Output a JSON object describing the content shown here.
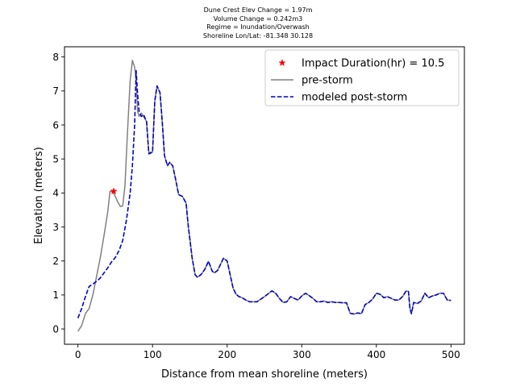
{
  "header_lines": [
    "Dune Crest Elev Change = 1.97m",
    "Volume Change = 0.242m3",
    "Regime = Inundation/Overwash",
    "Shoreline Lon/Lat: -81.348 30.128"
  ],
  "chart_data": {
    "type": "line",
    "xlabel": "Distance from mean shoreline (meters)",
    "ylabel": "Elevation (meters)",
    "xlim": [
      -18,
      518
    ],
    "ylim": [
      -0.45,
      8.3
    ],
    "xticks": [
      0,
      100,
      200,
      300,
      400,
      500
    ],
    "yticks": [
      0,
      1,
      2,
      3,
      4,
      5,
      6,
      7,
      8
    ],
    "grid": false,
    "legend_position": "top-right",
    "series": [
      {
        "name": "pre-storm",
        "color": "#808080",
        "style": "solid",
        "x": [
          0,
          5,
          10,
          15,
          20,
          25,
          30,
          35,
          40,
          43,
          47,
          50,
          53,
          57,
          60,
          63,
          66,
          70,
          73,
          76,
          78,
          80,
          82,
          85,
          88,
          92,
          95,
          100,
          103,
          106,
          110,
          113,
          116,
          120,
          123,
          127,
          130,
          135,
          140,
          145,
          148,
          150,
          153,
          157,
          160,
          165,
          170,
          175,
          180,
          183,
          187,
          190,
          195,
          200,
          205,
          208,
          212,
          216,
          220,
          225,
          230,
          240,
          250,
          260,
          265,
          270,
          275,
          280,
          285,
          290,
          295,
          300,
          305,
          310,
          315,
          320,
          325,
          330,
          335,
          340,
          345,
          350,
          355,
          360,
          365,
          370,
          375,
          380,
          385,
          390,
          395,
          400,
          405,
          410,
          415,
          420,
          425,
          430,
          435,
          440,
          443,
          445,
          447,
          450,
          455,
          460,
          465,
          470,
          475,
          480,
          485,
          490,
          495,
          500
        ],
        "y": [
          -0.07,
          0.1,
          0.45,
          0.6,
          1.0,
          1.55,
          2.1,
          2.75,
          3.45,
          4.05,
          4.03,
          3.9,
          3.75,
          3.6,
          3.62,
          4.2,
          5.6,
          7.3,
          7.9,
          7.7,
          7.3,
          6.4,
          6.25,
          6.35,
          6.25,
          6.1,
          5.2,
          5.2,
          6.7,
          7.15,
          6.95,
          6.1,
          5.1,
          4.8,
          4.9,
          4.8,
          4.5,
          3.95,
          3.9,
          3.7,
          3.0,
          2.65,
          2.1,
          1.6,
          1.52,
          1.6,
          1.75,
          1.99,
          1.7,
          1.65,
          1.72,
          1.85,
          2.08,
          2.0,
          1.5,
          1.2,
          1.02,
          0.95,
          0.92,
          0.85,
          0.8,
          0.8,
          0.95,
          1.12,
          1.05,
          0.9,
          0.78,
          0.8,
          0.95,
          0.9,
          0.85,
          0.97,
          1.05,
          0.98,
          0.9,
          0.8,
          0.8,
          0.82,
          0.78,
          0.8,
          0.78,
          0.78,
          0.77,
          0.77,
          0.46,
          0.44,
          0.47,
          0.45,
          0.72,
          0.78,
          0.88,
          1.05,
          1.02,
          0.92,
          0.95,
          0.9,
          0.85,
          0.85,
          0.95,
          1.12,
          1.1,
          0.6,
          0.45,
          0.78,
          0.75,
          0.82,
          1.05,
          0.92,
          0.97,
          1.0,
          1.05,
          1.05,
          0.85,
          0.84
        ]
      },
      {
        "name": "modeled post-storm",
        "color": "#0000cc",
        "style": "dashed",
        "x": [
          0,
          5,
          10,
          15,
          20,
          25,
          30,
          35,
          40,
          45,
          50,
          55,
          60,
          65,
          70,
          73,
          76,
          78,
          80,
          82,
          85,
          88,
          92,
          95,
          100,
          103,
          106,
          110,
          113,
          116,
          120,
          123,
          127,
          130,
          135,
          140,
          145,
          148,
          150,
          153,
          157,
          160,
          165,
          170,
          175,
          180,
          183,
          187,
          190,
          195,
          200,
          205,
          208,
          212,
          216,
          220,
          225,
          230,
          240,
          250,
          260,
          265,
          270,
          275,
          280,
          285,
          290,
          295,
          300,
          305,
          310,
          315,
          320,
          325,
          330,
          335,
          340,
          345,
          350,
          355,
          360,
          365,
          370,
          375,
          380,
          385,
          390,
          395,
          400,
          405,
          410,
          415,
          420,
          425,
          430,
          435,
          440,
          443,
          445,
          447,
          450,
          455,
          460,
          465,
          470,
          475,
          480,
          485,
          490,
          495,
          500
        ],
        "y": [
          0.32,
          0.6,
          0.95,
          1.25,
          1.32,
          1.4,
          1.5,
          1.65,
          1.8,
          1.97,
          2.1,
          2.3,
          2.6,
          3.2,
          4.0,
          4.8,
          6.0,
          7.6,
          6.9,
          6.4,
          6.25,
          6.3,
          6.1,
          5.15,
          5.2,
          6.7,
          7.15,
          6.95,
          6.1,
          5.1,
          4.8,
          4.9,
          4.8,
          4.5,
          3.95,
          3.9,
          3.7,
          3.0,
          2.65,
          2.1,
          1.6,
          1.52,
          1.6,
          1.75,
          1.99,
          1.7,
          1.65,
          1.72,
          1.85,
          2.08,
          2.0,
          1.5,
          1.2,
          1.02,
          0.95,
          0.92,
          0.85,
          0.8,
          0.8,
          0.95,
          1.12,
          1.05,
          0.9,
          0.78,
          0.8,
          0.95,
          0.9,
          0.85,
          0.97,
          1.05,
          0.98,
          0.9,
          0.8,
          0.8,
          0.82,
          0.78,
          0.8,
          0.78,
          0.78,
          0.77,
          0.77,
          0.46,
          0.44,
          0.47,
          0.45,
          0.72,
          0.78,
          0.88,
          1.05,
          1.02,
          0.92,
          0.95,
          0.9,
          0.85,
          0.85,
          0.95,
          1.12,
          1.1,
          0.6,
          0.45,
          0.78,
          0.75,
          0.82,
          1.05,
          0.92,
          0.97,
          1.0,
          1.05,
          1.05,
          0.85,
          0.84
        ]
      }
    ],
    "markers": [
      {
        "name": "Impact Duration(hr) = 10.5",
        "x": 48,
        "y": 4.05,
        "color": "#ff0000",
        "symbol": "star"
      }
    ],
    "legend": [
      "Impact Duration(hr) = 10.5",
      "pre-storm",
      "modeled post-storm"
    ]
  }
}
